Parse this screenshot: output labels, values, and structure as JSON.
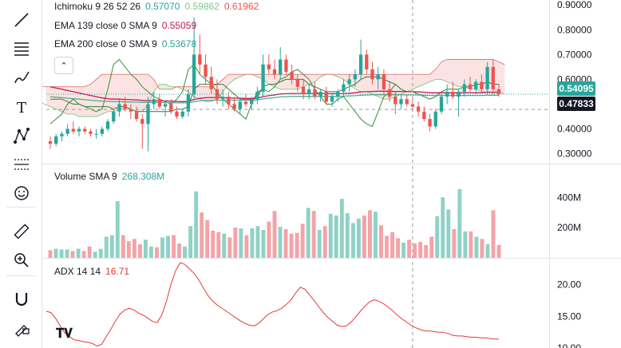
{
  "toolbar": {
    "tools": [
      {
        "name": "trend-line-icon",
        "glyph": "line"
      },
      {
        "name": "horizontal-lines-icon",
        "glyph": "hlines"
      },
      {
        "name": "brush-icon",
        "glyph": "brush"
      },
      {
        "name": "text-icon",
        "glyph": "T"
      },
      {
        "name": "pattern-icon",
        "glyph": "pattern"
      },
      {
        "name": "forecast-icon",
        "glyph": "forecast"
      },
      {
        "name": "smiley-icon",
        "glyph": "smile"
      },
      {
        "name": "ruler-icon",
        "glyph": "ruler"
      },
      {
        "name": "zoom-in-icon",
        "glyph": "zoom"
      },
      {
        "name": "magnet-icon",
        "glyph": "magnet"
      },
      {
        "name": "lock-pencil-icon",
        "glyph": "lock"
      }
    ]
  },
  "colors": {
    "up": "#26a69a",
    "down": "#ef5350",
    "up_volume": "#8fd2c5",
    "down_volume": "#f4a3a8",
    "ema139": "#c2185b",
    "ema200": "#4caf8a",
    "kumo_bull": "#a5d6a7",
    "kumo_bear": "#f8c8c8",
    "adx": "#e53935",
    "crosshair": "#9598a1",
    "last_price_tag": "#26a69a",
    "crosshair_tag": "#131722"
  },
  "legends": {
    "ichimoku": {
      "label": "Ichimoku 9 26 52 26",
      "v1": "0.57070",
      "v2": "0.59862",
      "v3": "0.61962"
    },
    "ema139": {
      "label": "EMA 139 close 0 SMA 9",
      "value": "0.55059"
    },
    "ema200": {
      "label": "EMA 200 close 0 SMA 9",
      "value": "0.53678"
    },
    "volume": {
      "label": "Volume SMA 9",
      "value": "268.308M"
    },
    "adx": {
      "label": "ADX 14 14",
      "value": "16.71"
    }
  },
  "axis_tags": {
    "last_price": "0.54095",
    "crosshair_price": "0.47833"
  },
  "chart_data": [
    {
      "type": "candlestick",
      "panel": "price",
      "ylim": [
        0.26,
        0.92
      ],
      "yticks": [
        "0.30000",
        "0.40000",
        "0.50000",
        "0.60000",
        "0.70000",
        "0.80000",
        "0.90000"
      ],
      "ytick_values": [
        0.3,
        0.4,
        0.5,
        0.6,
        0.7,
        0.8,
        0.9
      ],
      "grid": false,
      "crosshair_index": 63,
      "candles": [
        [
          0.35,
          0.37,
          0.32,
          0.34
        ],
        [
          0.34,
          0.38,
          0.33,
          0.37
        ],
        [
          0.37,
          0.39,
          0.35,
          0.38
        ],
        [
          0.38,
          0.42,
          0.37,
          0.4
        ],
        [
          0.4,
          0.43,
          0.38,
          0.39
        ],
        [
          0.39,
          0.41,
          0.37,
          0.4
        ],
        [
          0.4,
          0.41,
          0.38,
          0.39
        ],
        [
          0.39,
          0.4,
          0.37,
          0.38
        ],
        [
          0.38,
          0.4,
          0.36,
          0.38
        ],
        [
          0.38,
          0.41,
          0.37,
          0.4
        ],
        [
          0.4,
          0.44,
          0.39,
          0.43
        ],
        [
          0.43,
          0.48,
          0.42,
          0.47
        ],
        [
          0.47,
          0.52,
          0.45,
          0.5
        ],
        [
          0.5,
          0.53,
          0.47,
          0.48
        ],
        [
          0.48,
          0.5,
          0.44,
          0.47
        ],
        [
          0.47,
          0.49,
          0.43,
          0.44
        ],
        [
          0.44,
          0.46,
          0.32,
          0.42
        ],
        [
          0.42,
          0.53,
          0.31,
          0.5
        ],
        [
          0.5,
          0.55,
          0.48,
          0.52
        ],
        [
          0.52,
          0.54,
          0.48,
          0.49
        ],
        [
          0.49,
          0.51,
          0.45,
          0.5
        ],
        [
          0.5,
          0.52,
          0.46,
          0.47
        ],
        [
          0.47,
          0.49,
          0.44,
          0.45
        ],
        [
          0.45,
          0.48,
          0.44,
          0.47
        ],
        [
          0.47,
          0.56,
          0.45,
          0.54
        ],
        [
          0.54,
          0.85,
          0.52,
          0.7
        ],
        [
          0.7,
          0.78,
          0.62,
          0.66
        ],
        [
          0.66,
          0.7,
          0.58,
          0.61
        ],
        [
          0.61,
          0.65,
          0.54,
          0.56
        ],
        [
          0.56,
          0.6,
          0.5,
          0.52
        ],
        [
          0.52,
          0.56,
          0.49,
          0.53
        ],
        [
          0.53,
          0.55,
          0.48,
          0.5
        ],
        [
          0.5,
          0.53,
          0.47,
          0.48
        ],
        [
          0.48,
          0.52,
          0.46,
          0.51
        ],
        [
          0.51,
          0.54,
          0.49,
          0.5
        ],
        [
          0.5,
          0.53,
          0.48,
          0.52
        ],
        [
          0.52,
          0.57,
          0.5,
          0.55
        ],
        [
          0.55,
          0.7,
          0.53,
          0.66
        ],
        [
          0.66,
          0.7,
          0.62,
          0.64
        ],
        [
          0.64,
          0.68,
          0.6,
          0.62
        ],
        [
          0.62,
          0.73,
          0.6,
          0.68
        ],
        [
          0.68,
          0.7,
          0.62,
          0.63
        ],
        [
          0.63,
          0.66,
          0.58,
          0.6
        ],
        [
          0.6,
          0.62,
          0.55,
          0.57
        ],
        [
          0.57,
          0.6,
          0.52,
          0.54
        ],
        [
          0.54,
          0.58,
          0.52,
          0.56
        ],
        [
          0.56,
          0.59,
          0.52,
          0.53
        ],
        [
          0.53,
          0.56,
          0.51,
          0.55
        ],
        [
          0.55,
          0.57,
          0.5,
          0.51
        ],
        [
          0.51,
          0.54,
          0.49,
          0.53
        ],
        [
          0.53,
          0.56,
          0.51,
          0.55
        ],
        [
          0.55,
          0.6,
          0.53,
          0.58
        ],
        [
          0.58,
          0.62,
          0.55,
          0.6
        ],
        [
          0.6,
          0.64,
          0.57,
          0.62
        ],
        [
          0.62,
          0.76,
          0.6,
          0.7
        ],
        [
          0.7,
          0.72,
          0.62,
          0.64
        ],
        [
          0.64,
          0.67,
          0.58,
          0.6
        ],
        [
          0.6,
          0.65,
          0.56,
          0.62
        ],
        [
          0.62,
          0.64,
          0.54,
          0.56
        ],
        [
          0.56,
          0.59,
          0.51,
          0.53
        ],
        [
          0.53,
          0.55,
          0.46,
          0.5
        ],
        [
          0.5,
          0.54,
          0.48,
          0.52
        ],
        [
          0.52,
          0.54,
          0.49,
          0.5
        ],
        [
          0.5,
          0.53,
          0.47,
          0.49
        ],
        [
          0.49,
          0.51,
          0.45,
          0.47
        ],
        [
          0.47,
          0.49,
          0.43,
          0.44
        ],
        [
          0.44,
          0.46,
          0.39,
          0.41
        ],
        [
          0.41,
          0.48,
          0.4,
          0.47
        ],
        [
          0.47,
          0.55,
          0.46,
          0.53
        ],
        [
          0.53,
          0.58,
          0.5,
          0.55
        ],
        [
          0.55,
          0.59,
          0.52,
          0.53
        ],
        [
          0.53,
          0.56,
          0.45,
          0.55
        ],
        [
          0.55,
          0.6,
          0.53,
          0.58
        ],
        [
          0.58,
          0.61,
          0.55,
          0.56
        ],
        [
          0.56,
          0.6,
          0.54,
          0.59
        ],
        [
          0.59,
          0.62,
          0.55,
          0.56
        ],
        [
          0.56,
          0.67,
          0.54,
          0.65
        ],
        [
          0.65,
          0.68,
          0.54,
          0.56
        ],
        [
          0.56,
          0.58,
          0.53,
          0.54
        ]
      ],
      "ema139": [
        0.57,
        0.565,
        0.56,
        0.555,
        0.55,
        0.545,
        0.54,
        0.535,
        0.53,
        0.525,
        0.522,
        0.52,
        0.52,
        0.519,
        0.518,
        0.517,
        0.515,
        0.514,
        0.514,
        0.514,
        0.513,
        0.512,
        0.511,
        0.51,
        0.511,
        0.519,
        0.523,
        0.526,
        0.527,
        0.526,
        0.526,
        0.525,
        0.524,
        0.524,
        0.523,
        0.523,
        0.524,
        0.53,
        0.534,
        0.537,
        0.541,
        0.542,
        0.543,
        0.543,
        0.543,
        0.543,
        0.543,
        0.543,
        0.542,
        0.542,
        0.542,
        0.543,
        0.544,
        0.546,
        0.549,
        0.55,
        0.551,
        0.552,
        0.552,
        0.552,
        0.551,
        0.551,
        0.55,
        0.55,
        0.549,
        0.548,
        0.546,
        0.546,
        0.546,
        0.546,
        0.546,
        0.546,
        0.546,
        0.546,
        0.546,
        0.546,
        0.547,
        0.547,
        0.547
      ],
      "ema200": [
        0.53,
        0.528,
        0.526,
        0.524,
        0.522,
        0.52,
        0.518,
        0.516,
        0.514,
        0.512,
        0.511,
        0.51,
        0.51,
        0.509,
        0.509,
        0.508,
        0.507,
        0.507,
        0.507,
        0.507,
        0.506,
        0.506,
        0.505,
        0.505,
        0.505,
        0.51,
        0.513,
        0.515,
        0.516,
        0.516,
        0.516,
        0.516,
        0.516,
        0.516,
        0.516,
        0.516,
        0.517,
        0.521,
        0.524,
        0.526,
        0.529,
        0.53,
        0.531,
        0.531,
        0.531,
        0.531,
        0.531,
        0.531,
        0.531,
        0.531,
        0.531,
        0.532,
        0.533,
        0.534,
        0.536,
        0.537,
        0.538,
        0.538,
        0.538,
        0.538,
        0.538,
        0.538,
        0.537,
        0.537,
        0.537,
        0.536,
        0.535,
        0.535,
        0.535,
        0.535,
        0.535,
        0.535,
        0.535,
        0.535,
        0.535,
        0.535,
        0.536,
        0.536,
        0.536
      ],
      "kumo_a": [
        0.55,
        0.54,
        0.53,
        0.52,
        0.52,
        0.51,
        0.51,
        0.5,
        0.49,
        0.48,
        0.47,
        0.46,
        0.46,
        0.45,
        0.45,
        0.45,
        0.45,
        0.46,
        0.47,
        0.47,
        0.48,
        0.48,
        0.48,
        0.47,
        0.47,
        0.5,
        0.55,
        0.58,
        0.58,
        0.57,
        0.57,
        0.56,
        0.55,
        0.53,
        0.52,
        0.51,
        0.51,
        0.52,
        0.55,
        0.58,
        0.6,
        0.61,
        0.62,
        0.62,
        0.61,
        0.6,
        0.58,
        0.57,
        0.56,
        0.56,
        0.56,
        0.56,
        0.57,
        0.58,
        0.59,
        0.61,
        0.62,
        0.62,
        0.61,
        0.6,
        0.58,
        0.56,
        0.55,
        0.55,
        0.54,
        0.53,
        0.52,
        0.52,
        0.53,
        0.54,
        0.55,
        0.56,
        0.57,
        0.58,
        0.59,
        0.6,
        0.6,
        0.59,
        0.58,
        0.57,
        0.57,
        0.56,
        0.56,
        0.55,
        0.55,
        0.55,
        0.55,
        0.54
      ],
      "kumo_b": [
        0.6,
        0.6,
        0.59,
        0.58,
        0.57,
        0.57,
        0.57,
        0.57,
        0.57,
        0.57,
        0.57,
        0.57,
        0.57,
        0.57,
        0.57,
        0.58,
        0.6,
        0.62,
        0.62,
        0.62,
        0.62,
        0.62,
        0.62,
        0.62,
        0.62,
        0.62,
        0.6,
        0.56,
        0.56,
        0.56,
        0.57,
        0.57,
        0.57,
        0.57,
        0.57,
        0.57,
        0.57,
        0.58,
        0.6,
        0.62,
        0.62,
        0.62,
        0.62,
        0.62,
        0.62,
        0.62,
        0.62,
        0.62,
        0.62,
        0.62,
        0.62,
        0.62,
        0.62,
        0.62,
        0.62,
        0.62,
        0.62,
        0.62,
        0.62,
        0.62,
        0.62,
        0.62,
        0.62,
        0.62,
        0.62,
        0.62,
        0.62,
        0.62,
        0.62,
        0.62,
        0.62,
        0.62,
        0.62,
        0.62,
        0.62,
        0.64,
        0.67,
        0.68,
        0.68,
        0.68,
        0.68,
        0.68,
        0.68,
        0.68,
        0.68,
        0.68,
        0.67,
        0.66
      ],
      "kijun": [
        0.52,
        0.52,
        0.52,
        0.51,
        0.5,
        0.5,
        0.49,
        0.49,
        0.49,
        0.49,
        0.49,
        0.48,
        0.49,
        0.49,
        0.48,
        0.47,
        0.47,
        0.47,
        0.47,
        0.47,
        0.47,
        0.47,
        0.48,
        0.48,
        0.49,
        0.56,
        0.58,
        0.58,
        0.58,
        0.58,
        0.58,
        0.56,
        0.54,
        0.52,
        0.52,
        0.52,
        0.53,
        0.57,
        0.58,
        0.58,
        0.59,
        0.6,
        0.6,
        0.6,
        0.6,
        0.58,
        0.57,
        0.56,
        0.55,
        0.55,
        0.55,
        0.56,
        0.57,
        0.58,
        0.6,
        0.61,
        0.61,
        0.61,
        0.6,
        0.59,
        0.58,
        0.56,
        0.55,
        0.55,
        0.54,
        0.53,
        0.52,
        0.53,
        0.55,
        0.56,
        0.56,
        0.56,
        0.57,
        0.57,
        0.58,
        0.58,
        0.59,
        0.58,
        0.58
      ],
      "lagging": [
        0.42,
        0.44,
        0.46,
        0.5,
        0.52,
        0.5,
        0.49,
        0.48,
        0.47,
        0.48,
        0.56,
        0.66,
        0.68,
        0.65,
        0.62,
        0.6,
        0.57,
        0.55,
        0.53,
        0.52,
        0.51,
        0.5,
        0.52,
        0.55,
        0.64,
        0.66,
        0.62,
        0.6,
        0.58,
        0.55,
        0.52,
        0.5,
        0.48,
        0.46,
        0.44,
        0.5,
        0.55,
        0.56,
        0.55,
        0.57,
        0.6,
        0.61,
        0.63,
        0.64,
        0.62,
        0.6,
        0.56,
        0.53,
        0.5,
        0.5,
        0.52,
        0.53,
        0.5,
        0.47,
        0.44,
        0.42,
        0.41,
        0.47,
        0.53,
        0.55,
        0.58
      ]
    },
    {
      "type": "bar",
      "panel": "volume",
      "ylim": [
        0,
        560
      ],
      "yticks": [
        "200M",
        "400M"
      ],
      "ytick_values": [
        200,
        400
      ],
      "values": [
        50,
        60,
        55,
        55,
        45,
        60,
        45,
        75,
        40,
        60,
        140,
        150,
        375,
        150,
        110,
        125,
        90,
        120,
        75,
        70,
        135,
        145,
        150,
        95,
        75,
        210,
        440,
        300,
        250,
        180,
        170,
        160,
        135,
        200,
        195,
        150,
        195,
        210,
        185,
        240,
        310,
        205,
        190,
        160,
        165,
        225,
        330,
        310,
        185,
        210,
        290,
        280,
        390,
        295,
        230,
        260,
        280,
        315,
        305,
        215,
        145,
        170,
        130,
        100,
        120,
        95,
        105,
        85,
        140,
        275,
        400,
        320,
        190,
        455,
        175,
        175,
        140,
        125,
        90,
        315,
        85
      ]
    },
    {
      "type": "line",
      "panel": "adx",
      "ylim": [
        10,
        24
      ],
      "yticks": [
        "10.00",
        "15.00",
        "20.00"
      ],
      "ytick_values": [
        10,
        15,
        20
      ],
      "values": [
        15.8,
        15.6,
        14.7,
        13.5,
        12.4,
        11.8,
        11.3,
        11.2,
        11.0,
        10.9,
        10.7,
        10.3,
        10.6,
        11.8,
        13.0,
        14.3,
        15.4,
        16.0,
        16.3,
        16.0,
        15.5,
        15.2,
        14.7,
        14.2,
        14.0,
        15.2,
        17.3,
        20.1,
        22.2,
        23.5,
        23.2,
        22.5,
        21.8,
        20.8,
        19.5,
        18.3,
        17.4,
        16.8,
        16.3,
        15.8,
        15.3,
        14.8,
        14.3,
        13.9,
        13.6,
        13.5,
        13.9,
        14.6,
        15.3,
        15.7,
        15.9,
        16.3,
        16.9,
        17.6,
        18.7,
        19.6,
        19.3,
        18.4,
        17.5,
        16.5,
        15.6,
        14.8,
        14.2,
        13.6,
        13.4,
        13.5,
        14.1,
        14.9,
        15.8,
        16.6,
        17.3,
        17.6,
        17.4,
        17.0,
        16.5,
        15.9,
        15.2,
        14.6,
        14.1,
        13.6,
        13.2,
        12.9,
        12.7,
        12.7,
        12.6,
        12.5,
        12.5,
        12.3,
        12.0,
        11.9,
        11.9,
        11.8,
        11.7,
        11.7,
        11.6,
        11.6,
        11.5,
        11.4,
        11.4
      ]
    }
  ]
}
